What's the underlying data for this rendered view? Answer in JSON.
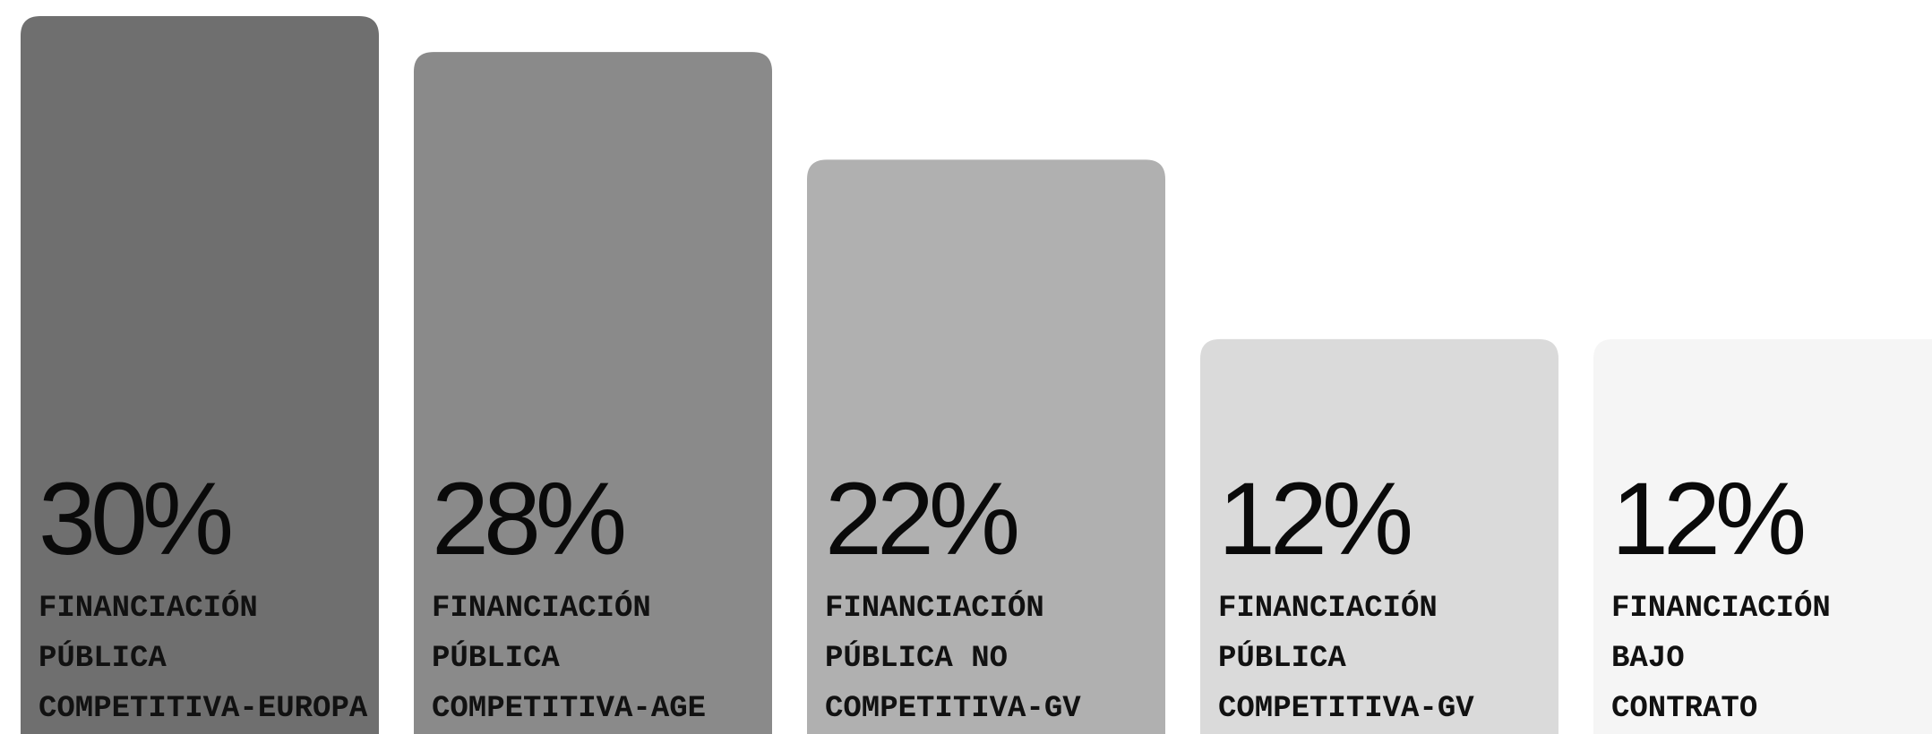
{
  "chart_data": {
    "type": "bar",
    "categories": [
      [
        "FINANCIACIÓN",
        "PÚBLICA",
        "COMPETITIVA-EUROPA"
      ],
      [
        "FINANCIACIÓN",
        "PÚBLICA",
        "COMPETITIVA-AGE"
      ],
      [
        "FINANCIACIÓN",
        "PÚBLICA NO",
        "COMPETITIVA-GV"
      ],
      [
        "FINANCIACIÓN",
        "PÚBLICA",
        "COMPETITIVA-GV"
      ],
      [
        "FINANCIACIÓN",
        "BAJO",
        "CONTRATO"
      ]
    ],
    "values": [
      30,
      28,
      22,
      12,
      12
    ],
    "value_labels": [
      "30%",
      "28%",
      "22%",
      "12%",
      "12%"
    ],
    "colors": [
      "#6f6f6f",
      "#8a8a8a",
      "#b0b0b0",
      "#dadada",
      "#f5f5f5"
    ],
    "ylim": [
      -10,
      30
    ]
  }
}
